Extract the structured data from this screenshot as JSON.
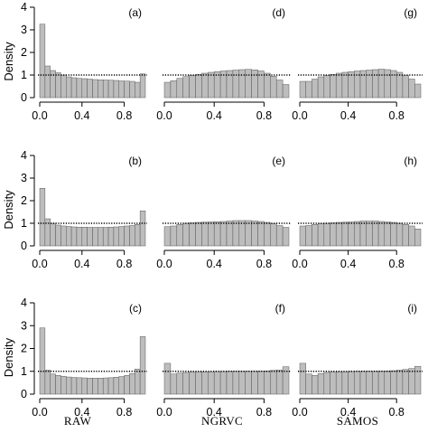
{
  "figure": {
    "column_labels": [
      "RAW",
      "NGRVC",
      "SAMOS"
    ],
    "ylabel": "Density",
    "colors": {
      "bar_fill": "#bdbdbd",
      "bar_stroke": "#5a5a5a",
      "axis": "#000000",
      "reference_line": "#000000"
    },
    "reference_line": {
      "y": 1,
      "style": "dotted"
    }
  },
  "chart_data": [
    {
      "id": "a",
      "label": "(a)",
      "type": "bar",
      "row": 0,
      "col": 0,
      "bin_edges_start": 0,
      "bin_width": 0.05,
      "xlim": [
        0,
        1
      ],
      "ylim": [
        0,
        4
      ],
      "xticks": [
        0.0,
        0.4,
        0.8
      ],
      "yticks": [
        0,
        1,
        2,
        3,
        4
      ],
      "show_yaxis": true,
      "values": [
        3.25,
        1.4,
        1.2,
        1.1,
        1.0,
        0.92,
        0.88,
        0.85,
        0.84,
        0.82,
        0.8,
        0.79,
        0.78,
        0.77,
        0.76,
        0.74,
        0.73,
        0.72,
        0.68,
        1.05
      ]
    },
    {
      "id": "d",
      "label": "(d)",
      "type": "bar",
      "row": 0,
      "col": 1,
      "bin_edges_start": 0,
      "bin_width": 0.05,
      "xlim": [
        0,
        1
      ],
      "ylim": [
        0,
        4
      ],
      "xticks": [
        0.0,
        0.4,
        0.8
      ],
      "show_yaxis": false,
      "values": [
        0.68,
        0.75,
        0.85,
        0.93,
        0.99,
        1.03,
        1.08,
        1.12,
        1.15,
        1.18,
        1.2,
        1.22,
        1.24,
        1.25,
        1.23,
        1.18,
        1.08,
        0.95,
        0.78,
        0.58
      ]
    },
    {
      "id": "g",
      "label": "(g)",
      "type": "bar",
      "row": 0,
      "col": 2,
      "bin_edges_start": 0,
      "bin_width": 0.05,
      "xlim": [
        0,
        1
      ],
      "ylim": [
        0,
        4
      ],
      "xticks": [
        0.0,
        0.4,
        0.8
      ],
      "show_yaxis": false,
      "values": [
        0.72,
        0.72,
        0.82,
        0.92,
        0.98,
        1.03,
        1.08,
        1.12,
        1.15,
        1.18,
        1.2,
        1.22,
        1.24,
        1.26,
        1.24,
        1.2,
        1.12,
        0.98,
        0.82,
        0.6
      ]
    },
    {
      "id": "b",
      "label": "(b)",
      "type": "bar",
      "row": 1,
      "col": 0,
      "bin_edges_start": 0,
      "bin_width": 0.05,
      "xlim": [
        0,
        1
      ],
      "ylim": [
        0,
        4
      ],
      "xticks": [
        0.0,
        0.4,
        0.8
      ],
      "yticks": [
        0,
        1,
        2,
        3,
        4
      ],
      "show_yaxis": true,
      "values": [
        2.55,
        1.2,
        1.0,
        0.92,
        0.88,
        0.86,
        0.84,
        0.83,
        0.83,
        0.82,
        0.82,
        0.82,
        0.82,
        0.83,
        0.84,
        0.86,
        0.88,
        0.9,
        0.95,
        1.55
      ]
    },
    {
      "id": "e",
      "label": "(e)",
      "type": "bar",
      "row": 1,
      "col": 1,
      "bin_edges_start": 0,
      "bin_width": 0.05,
      "xlim": [
        0,
        1
      ],
      "ylim": [
        0,
        4
      ],
      "xticks": [
        0.0,
        0.4,
        0.8
      ],
      "show_yaxis": false,
      "values": [
        0.85,
        0.88,
        0.95,
        1.0,
        1.02,
        1.04,
        1.05,
        1.06,
        1.07,
        1.08,
        1.1,
        1.12,
        1.12,
        1.12,
        1.1,
        1.08,
        1.04,
        0.98,
        0.9,
        0.82
      ]
    },
    {
      "id": "h",
      "label": "(h)",
      "type": "bar",
      "row": 1,
      "col": 2,
      "bin_edges_start": 0,
      "bin_width": 0.05,
      "xlim": [
        0,
        1
      ],
      "ylim": [
        0,
        4
      ],
      "xticks": [
        0.0,
        0.4,
        0.8
      ],
      "show_yaxis": false,
      "values": [
        0.88,
        0.9,
        0.95,
        0.98,
        1.0,
        1.02,
        1.04,
        1.05,
        1.06,
        1.08,
        1.1,
        1.1,
        1.1,
        1.08,
        1.06,
        1.04,
        1.0,
        0.95,
        0.88,
        0.75
      ]
    },
    {
      "id": "c",
      "label": "(c)",
      "type": "bar",
      "row": 2,
      "col": 0,
      "bin_edges_start": 0,
      "bin_width": 0.05,
      "xlim": [
        0,
        1
      ],
      "ylim": [
        0,
        4
      ],
      "xticks": [
        0.0,
        0.4,
        0.8
      ],
      "yticks": [
        0,
        1,
        2,
        3,
        4
      ],
      "show_yaxis": true,
      "values": [
        2.9,
        1.05,
        0.88,
        0.82,
        0.78,
        0.75,
        0.73,
        0.72,
        0.71,
        0.7,
        0.7,
        0.7,
        0.71,
        0.72,
        0.74,
        0.77,
        0.82,
        0.9,
        1.1,
        2.52
      ]
    },
    {
      "id": "f",
      "label": "(f)",
      "type": "bar",
      "row": 2,
      "col": 1,
      "bin_edges_start": 0,
      "bin_width": 0.05,
      "xlim": [
        0,
        1
      ],
      "ylim": [
        0,
        4
      ],
      "xticks": [
        0.0,
        0.4,
        0.8
      ],
      "show_yaxis": false,
      "values": [
        1.35,
        0.88,
        0.92,
        0.95,
        0.96,
        0.97,
        0.98,
        0.98,
        0.99,
        0.99,
        1.0,
        1.0,
        1.0,
        1.0,
        1.0,
        1.01,
        1.02,
        1.04,
        1.06,
        1.2
      ]
    },
    {
      "id": "i",
      "label": "(i)",
      "type": "bar",
      "row": 2,
      "col": 2,
      "bin_edges_start": 0,
      "bin_width": 0.05,
      "xlim": [
        0,
        1
      ],
      "ylim": [
        0,
        4
      ],
      "xticks": [
        0.0,
        0.4,
        0.8
      ],
      "show_yaxis": false,
      "values": [
        1.35,
        0.88,
        0.82,
        0.9,
        0.95,
        0.97,
        0.98,
        0.98,
        0.99,
        1.0,
        1.0,
        1.0,
        1.0,
        1.01,
        1.02,
        1.03,
        1.05,
        1.08,
        1.12,
        1.22
      ]
    }
  ]
}
